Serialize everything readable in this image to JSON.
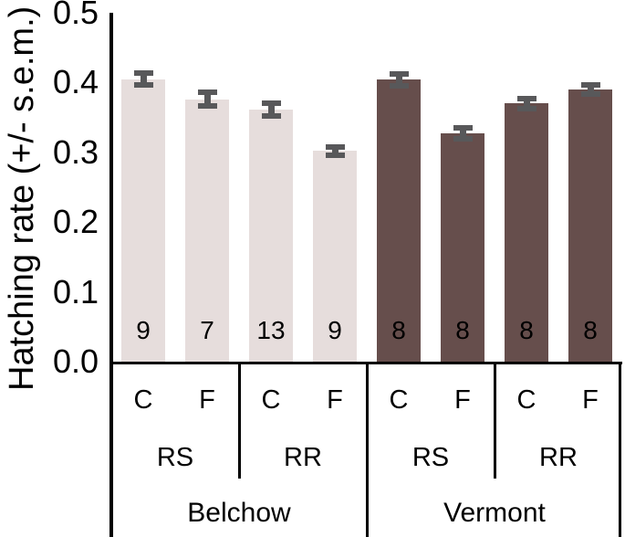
{
  "chart_data": {
    "type": "bar",
    "title": "",
    "ylabel": "Hatching rate (+/- s.e.m.)",
    "xlabel": "",
    "ylim": [
      0,
      0.5
    ],
    "yticks": [
      0,
      0.1,
      0.2,
      0.3,
      0.4,
      0.5
    ],
    "grid": false,
    "legend_position": "none",
    "error_bar_color": "#58585a",
    "axis_color": "#000000",
    "categories_note": "8 bars: site x genotype x treatment; n shown inside each bar",
    "groups": [
      {
        "site": "Belchow",
        "color": "#e6dddc",
        "subgroups": [
          {
            "genotype": "RS",
            "bars": [
              {
                "treatment": "C",
                "value": 0.405,
                "sem": 0.012,
                "n": 9
              },
              {
                "treatment": "F",
                "value": 0.376,
                "sem": 0.014,
                "n": 7
              }
            ]
          },
          {
            "genotype": "RR",
            "bars": [
              {
                "treatment": "C",
                "value": 0.361,
                "sem": 0.013,
                "n": 13
              },
              {
                "treatment": "F",
                "value": 0.302,
                "sem": 0.01,
                "n": 9
              }
            ]
          }
        ]
      },
      {
        "site": "Vermont",
        "color": "#664e4c",
        "subgroups": [
          {
            "genotype": "RS",
            "bars": [
              {
                "treatment": "C",
                "value": 0.404,
                "sem": 0.012,
                "n": 8
              },
              {
                "treatment": "F",
                "value": 0.327,
                "sem": 0.012,
                "n": 8
              }
            ]
          },
          {
            "genotype": "RR",
            "bars": [
              {
                "treatment": "C",
                "value": 0.37,
                "sem": 0.011,
                "n": 8
              },
              {
                "treatment": "F",
                "value": 0.39,
                "sem": 0.011,
                "n": 8
              }
            ]
          }
        ]
      }
    ]
  }
}
